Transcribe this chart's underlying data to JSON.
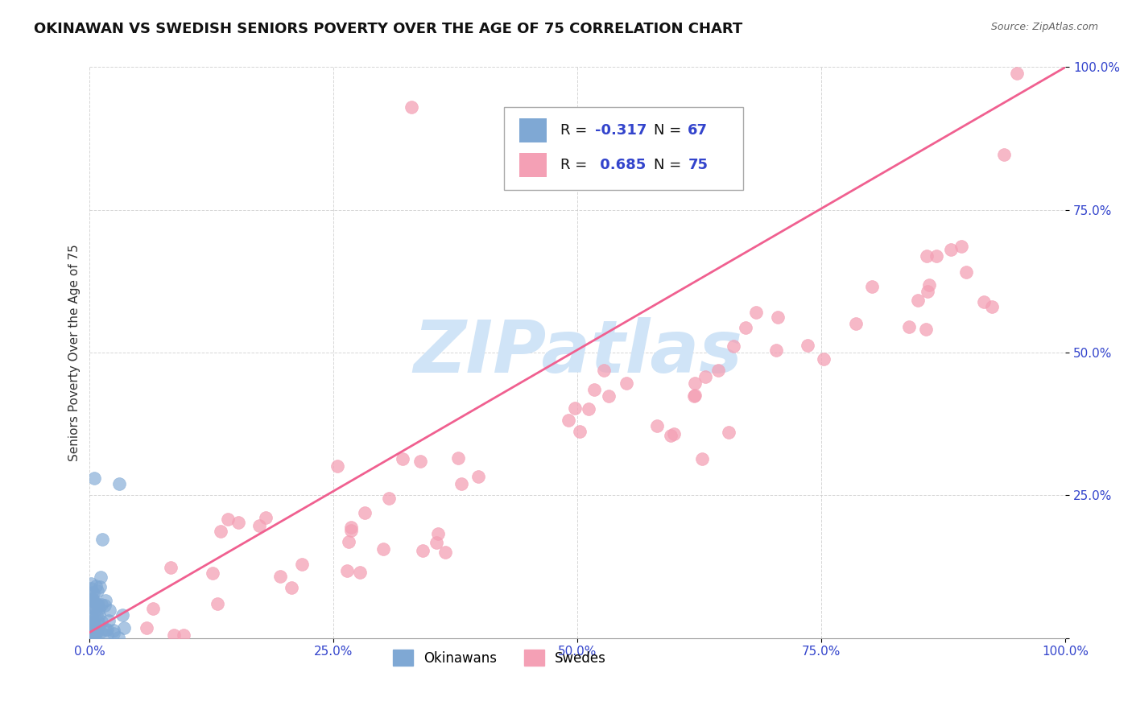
{
  "title": "OKINAWAN VS SWEDISH SENIORS POVERTY OVER THE AGE OF 75 CORRELATION CHART",
  "source": "Source: ZipAtlas.com",
  "ylabel": "Seniors Poverty Over the Age of 75",
  "xlim": [
    0.0,
    1.0
  ],
  "ylim": [
    0.0,
    1.0
  ],
  "xticks": [
    0.0,
    0.25,
    0.5,
    0.75,
    1.0
  ],
  "yticks": [
    0.0,
    0.25,
    0.5,
    0.75,
    1.0
  ],
  "xticklabels": [
    "0.0%",
    "25.0%",
    "50.0%",
    "75.0%",
    "100.0%"
  ],
  "yticklabels": [
    "",
    "25.0%",
    "50.0%",
    "75.0%",
    "100.0%"
  ],
  "okinawan_color": "#7fa8d4",
  "swedish_color": "#f4a0b5",
  "trend_color_swedish": "#f06090",
  "background_color": "#ffffff",
  "grid_color": "#cccccc",
  "watermark": "ZIPatlas",
  "watermark_color": "#d0e4f7",
  "legend_R_okinawan": "-0.317",
  "legend_N_okinawan": "67",
  "legend_R_swedish": "0.685",
  "legend_N_swedish": "75",
  "title_fontsize": 13,
  "axis_label_fontsize": 11,
  "tick_fontsize": 11,
  "legend_fontsize": 13
}
